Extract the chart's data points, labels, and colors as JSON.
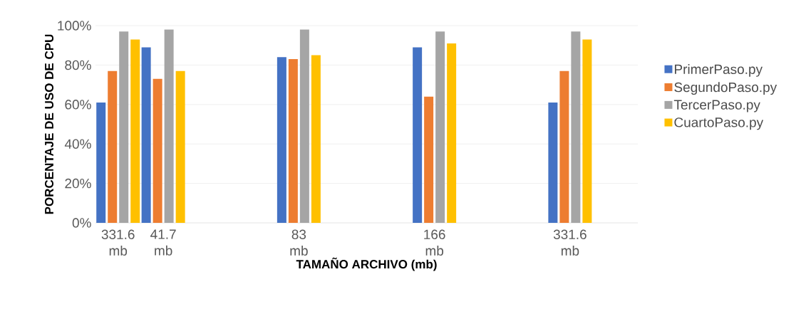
{
  "chart_data": {
    "type": "bar",
    "xlabel": "TAMAÑO ARCHIVO (mb)",
    "ylabel": "PORCENTAJE DE USO DE CPU",
    "categories": [
      "331.6 mb",
      "41.7 mb",
      null,
      null,
      "83 mb",
      null,
      null,
      "166 mb",
      null,
      null,
      "331.6 mb",
      null
    ],
    "series": [
      {
        "name": "PrimerPaso.py",
        "color": "#4472c4",
        "values": [
          61,
          89,
          null,
          null,
          84,
          null,
          null,
          89,
          null,
          null,
          61,
          null
        ]
      },
      {
        "name": "SegundoPaso.py",
        "color": "#ed7d31",
        "values": [
          77,
          73,
          null,
          null,
          83,
          null,
          null,
          64,
          null,
          null,
          77,
          null
        ]
      },
      {
        "name": "TercerPaso.py",
        "color": "#a5a5a5",
        "values": [
          97,
          98,
          null,
          null,
          98,
          null,
          null,
          97,
          null,
          null,
          97,
          null
        ]
      },
      {
        "name": "CuartoPaso.py",
        "color": "#ffc000",
        "values": [
          93,
          77,
          null,
          null,
          85,
          null,
          null,
          91,
          null,
          null,
          93,
          null
        ]
      }
    ],
    "ylim": [
      0,
      100
    ],
    "yticks": [
      {
        "value": 0,
        "label": "0%"
      },
      {
        "value": 20,
        "label": "20%"
      },
      {
        "value": 40,
        "label": "40%"
      },
      {
        "value": 60,
        "label": "60%"
      },
      {
        "value": 80,
        "label": "80%"
      },
      {
        "value": 100,
        "label": "100%"
      }
    ],
    "grid": "y",
    "legend": "right"
  }
}
